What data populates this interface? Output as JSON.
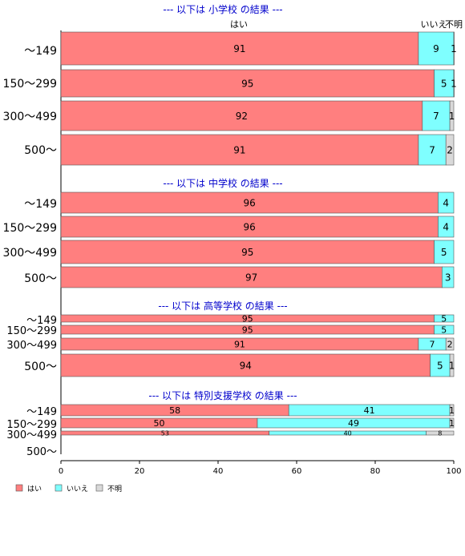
{
  "colors": {
    "yes": "#FF7F7F",
    "no": "#7FFFFF",
    "unknown": "#D9D9D9",
    "section_title": "#0000CC"
  },
  "chart_data": {
    "type": "bar",
    "orientation": "horizontal",
    "stacked": true,
    "xlim": [
      0,
      100
    ],
    "xticks": [
      "0",
      "20",
      "40",
      "60",
      "80",
      "100"
    ],
    "column_header": {
      "yes": "はい",
      "no": "いいえ",
      "unknown": "不明"
    },
    "legend": {
      "position": "bottom-left",
      "items": [
        "はい",
        "いいえ",
        "不明"
      ]
    },
    "sections": [
      {
        "title": "--- 以下は 小学校 の結果 ---",
        "rows": [
          {
            "category": "～149",
            "values": [
              91,
              9,
              1
            ]
          },
          {
            "category": "150～299",
            "values": [
              95,
              5,
              1
            ]
          },
          {
            "category": "300～499",
            "values": [
              92,
              7,
              1
            ]
          },
          {
            "category": "500～",
            "values": [
              91,
              7,
              2
            ]
          }
        ]
      },
      {
        "title": "--- 以下は 中学校 の結果 ---",
        "rows": [
          {
            "category": "～149",
            "values": [
              96,
              4,
              0
            ]
          },
          {
            "category": "150～299",
            "values": [
              96,
              4,
              0
            ]
          },
          {
            "category": "300～499",
            "values": [
              95,
              5,
              0
            ]
          },
          {
            "category": "500～",
            "values": [
              97,
              3,
              0
            ]
          }
        ]
      },
      {
        "title": "--- 以下は 高等学校 の結果 ---",
        "rows": [
          {
            "category": "～149",
            "values": [
              95,
              5,
              0
            ]
          },
          {
            "category": "150～299",
            "values": [
              95,
              5,
              0
            ]
          },
          {
            "category": "300～499",
            "values": [
              91,
              7,
              2
            ]
          },
          {
            "category": "500～",
            "values": [
              94,
              5,
              1
            ]
          }
        ]
      },
      {
        "title": "--- 以下は 特別支援学校 の結果 ---",
        "rows": [
          {
            "category": "～149",
            "values": [
              58,
              41,
              1
            ]
          },
          {
            "category": "150～299",
            "values": [
              50,
              49,
              1
            ]
          },
          {
            "category": "300～499",
            "values": [
              53,
              40,
              8
            ]
          },
          {
            "category": "500～",
            "values": null
          }
        ]
      }
    ]
  }
}
